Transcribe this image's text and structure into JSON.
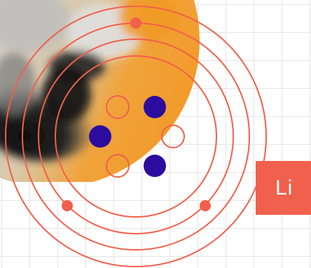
{
  "element": {
    "symbol": "Li",
    "shell_count": 4,
    "orbiting_electrons": 3,
    "nucleus": {
      "protons": 3,
      "neutrons": 3
    }
  },
  "colors": {
    "accent": "#f1604c",
    "proton": "#2b0c9e",
    "grid": "#e4e4e4",
    "background": "#ffffff",
    "tile_text": "#ffffff"
  },
  "photo": {
    "description_tones": [
      "#f0a33a",
      "#8a8a8a",
      "#1e1e1e",
      "#d8d8d8"
    ]
  }
}
